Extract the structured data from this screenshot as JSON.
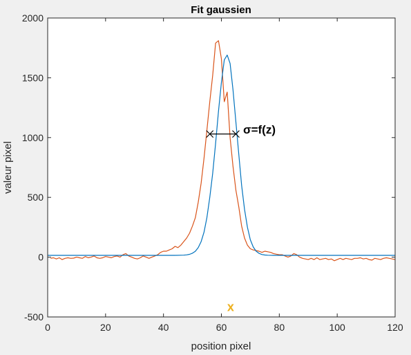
{
  "chart_data": {
    "type": "line",
    "title": "Fit gaussien",
    "xlabel": "position pixel",
    "ylabel": "valeur pixel",
    "xlim": [
      0,
      120
    ],
    "ylim": [
      -500,
      2000
    ],
    "xticks": [
      0,
      20,
      40,
      60,
      80,
      100,
      120
    ],
    "yticks": [
      -500,
      0,
      500,
      1000,
      1500,
      2000
    ],
    "grid": false,
    "colors": {
      "fit": "#0072BD",
      "data": "#D95319",
      "annotation": "#000000",
      "marker": "#EDB120"
    },
    "series": [
      {
        "key": "data",
        "x": [
          1,
          2,
          3,
          4,
          5,
          6,
          7,
          8,
          9,
          10,
          11,
          12,
          13,
          14,
          15,
          16,
          17,
          18,
          19,
          20,
          21,
          22,
          23,
          24,
          25,
          26,
          27,
          28,
          29,
          30,
          31,
          32,
          33,
          34,
          35,
          36,
          37,
          38,
          39,
          40,
          41,
          42,
          43,
          44,
          45,
          46,
          47,
          48,
          49,
          50,
          51,
          52,
          53,
          54,
          55,
          56,
          57,
          58,
          59,
          60,
          61,
          62,
          63,
          64,
          65,
          66,
          67,
          68,
          69,
          70,
          71,
          72,
          73,
          74,
          75,
          76,
          77,
          78,
          79,
          80,
          81,
          82,
          83,
          84,
          85,
          86,
          87,
          88,
          89,
          90,
          91,
          92,
          93,
          94,
          95,
          96,
          97,
          98,
          99,
          100,
          101,
          102,
          103,
          104,
          105,
          106,
          107,
          108,
          109,
          110,
          111,
          112,
          113,
          114,
          115,
          116,
          117,
          118,
          119,
          120
        ],
        "y": [
          -10,
          -5,
          -15,
          -5,
          -20,
          -10,
          -5,
          -10,
          -8,
          0,
          -5,
          -10,
          5,
          -5,
          0,
          10,
          -5,
          -10,
          -5,
          5,
          0,
          -5,
          5,
          10,
          0,
          20,
          30,
          10,
          0,
          -10,
          -15,
          -5,
          10,
          0,
          -10,
          0,
          10,
          20,
          40,
          50,
          50,
          60,
          70,
          90,
          80,
          100,
          130,
          160,
          200,
          260,
          330,
          460,
          620,
          830,
          1060,
          1300,
          1520,
          1790,
          1810,
          1660,
          1300,
          1380,
          1000,
          760,
          560,
          420,
          260,
          160,
          100,
          70,
          60,
          55,
          50,
          40,
          50,
          45,
          40,
          30,
          25,
          20,
          20,
          10,
          0,
          10,
          30,
          20,
          0,
          -10,
          -15,
          -20,
          -10,
          -20,
          -5,
          -20,
          -15,
          -10,
          -20,
          -15,
          -30,
          -20,
          -10,
          -20,
          -10,
          -15,
          -20,
          -10,
          -10,
          -5,
          -15,
          -10,
          -20,
          -25,
          -10,
          -15,
          -20,
          -10,
          -5,
          -10,
          -15,
          -20
        ]
      },
      {
        "key": "fit",
        "x": [
          0,
          2,
          4,
          6,
          8,
          10,
          12,
          14,
          16,
          18,
          20,
          22,
          24,
          26,
          28,
          30,
          32,
          34,
          36,
          38,
          40,
          42,
          44,
          46,
          47,
          48,
          49,
          50,
          51,
          52,
          53,
          54,
          55,
          56,
          57,
          58,
          59,
          60,
          61,
          62,
          63,
          64,
          65,
          66,
          67,
          68,
          69,
          70,
          71,
          72,
          73,
          74,
          75,
          76,
          78,
          80,
          82,
          84,
          86,
          88,
          90,
          92,
          94,
          96,
          98,
          100,
          102,
          104,
          106,
          108,
          110,
          112,
          114,
          116,
          118,
          120
        ],
        "y": [
          15,
          15,
          15,
          15,
          15,
          15,
          15,
          15,
          15,
          15,
          15,
          15,
          15,
          15,
          15,
          15,
          15,
          15,
          15,
          15,
          15,
          15,
          15,
          16,
          17,
          19,
          24,
          33,
          49,
          80,
          130,
          210,
          330,
          500,
          700,
          950,
          1220,
          1460,
          1650,
          1690,
          1620,
          1400,
          1130,
          860,
          600,
          400,
          250,
          145,
          85,
          50,
          32,
          22,
          18,
          16,
          15,
          15,
          15,
          15,
          15,
          15,
          15,
          15,
          15,
          15,
          15,
          15,
          15,
          15,
          15,
          15,
          15,
          15,
          15,
          15,
          15,
          15
        ]
      }
    ],
    "annotations": [
      {
        "text": "σ=f(z)",
        "x": 67.5,
        "y": 1035
      },
      {
        "text": "x",
        "x": 63.2,
        "y": -450
      }
    ],
    "sigma_segment": {
      "x1": 56,
      "x2": 65,
      "y": 1030
    }
  }
}
